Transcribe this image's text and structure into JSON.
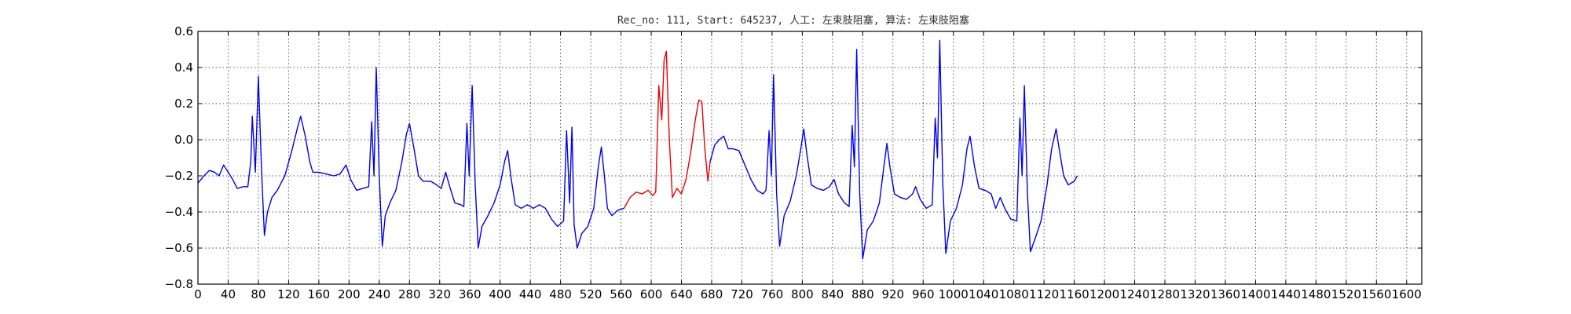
{
  "chart_data": {
    "type": "line",
    "title": "Rec_no: 111, Start: 645237, 人工: 左束肢阻塞, 算法: 左束肢阻塞",
    "xlabel": "",
    "ylabel": "",
    "xlim": [
      0,
      1620
    ],
    "ylim": [
      -0.8,
      0.6
    ],
    "grid": true,
    "x_ticks": [
      0,
      40,
      80,
      120,
      160,
      200,
      240,
      280,
      320,
      360,
      400,
      440,
      480,
      520,
      560,
      600,
      640,
      680,
      720,
      760,
      800,
      840,
      880,
      920,
      960,
      1000,
      1040,
      1080,
      1120,
      1160,
      1200,
      1240,
      1280,
      1320,
      1360,
      1400,
      1440,
      1480,
      1520,
      1560,
      1600
    ],
    "x_tick_labels": [
      "0",
      "40",
      "80",
      "120",
      "160",
      "200",
      "240",
      "280",
      "320",
      "360",
      "400",
      "440",
      "480",
      "520",
      "560",
      "600",
      "640",
      "680",
      "720",
      "760",
      "800",
      "840",
      "880",
      "920",
      "960",
      "1000",
      "1040",
      "1080",
      "1120",
      "1160",
      "1200",
      "1240",
      "1280",
      "1320",
      "1360",
      "1400",
      "1440",
      "1480",
      "1520",
      "1560",
      "1600"
    ],
    "y_ticks": [
      -0.8,
      -0.6,
      -0.4,
      -0.2,
      0.0,
      0.2,
      0.4,
      0.6
    ],
    "y_tick_labels": [
      "−0.8",
      "−0.6",
      "−0.4",
      "−0.2",
      "0.0",
      "0.2",
      "0.4",
      "0.6"
    ],
    "colors": {
      "normal": "#0000ee",
      "highlight": "#ee0000"
    },
    "series": [
      {
        "color": "#0000ee",
        "points": [
          [
            0,
            -0.24
          ],
          [
            8,
            -0.2
          ],
          [
            15,
            -0.17
          ],
          [
            22,
            -0.18
          ],
          [
            28,
            -0.2
          ],
          [
            34,
            -0.14
          ],
          [
            40,
            -0.18
          ],
          [
            46,
            -0.22
          ],
          [
            52,
            -0.27
          ],
          [
            60,
            -0.26
          ],
          [
            66,
            -0.26
          ],
          [
            70,
            -0.12
          ],
          [
            72,
            0.13
          ],
          [
            76,
            -0.18
          ],
          [
            80,
            0.35
          ],
          [
            84,
            -0.15
          ],
          [
            88,
            -0.53
          ],
          [
            92,
            -0.4
          ],
          [
            98,
            -0.32
          ],
          [
            105,
            -0.28
          ],
          [
            115,
            -0.2
          ],
          [
            125,
            -0.05
          ],
          [
            132,
            0.07
          ],
          [
            136,
            0.13
          ],
          [
            142,
            0.02
          ],
          [
            148,
            -0.12
          ],
          [
            152,
            -0.18
          ],
          [
            160,
            -0.18
          ],
          [
            170,
            -0.19
          ],
          [
            180,
            -0.2
          ],
          [
            188,
            -0.19
          ],
          [
            196,
            -0.14
          ],
          [
            202,
            -0.22
          ],
          [
            210,
            -0.28
          ],
          [
            218,
            -0.27
          ],
          [
            226,
            -0.26
          ],
          [
            230,
            0.1
          ],
          [
            233,
            -0.2
          ],
          [
            236,
            0.4
          ],
          [
            240,
            -0.2
          ],
          [
            244,
            -0.59
          ],
          [
            248,
            -0.42
          ],
          [
            254,
            -0.35
          ],
          [
            262,
            -0.28
          ],
          [
            270,
            -0.12
          ],
          [
            276,
            0.03
          ],
          [
            280,
            0.09
          ],
          [
            286,
            -0.05
          ],
          [
            292,
            -0.2
          ],
          [
            298,
            -0.23
          ],
          [
            308,
            -0.23
          ],
          [
            316,
            -0.25
          ],
          [
            322,
            -0.27
          ],
          [
            328,
            -0.18
          ],
          [
            334,
            -0.27
          ],
          [
            340,
            -0.35
          ],
          [
            348,
            -0.36
          ],
          [
            352,
            -0.37
          ],
          [
            356,
            0.09
          ],
          [
            359,
            -0.2
          ],
          [
            363,
            0.3
          ],
          [
            367,
            -0.25
          ],
          [
            371,
            -0.6
          ],
          [
            376,
            -0.48
          ],
          [
            384,
            -0.42
          ],
          [
            392,
            -0.35
          ],
          [
            400,
            -0.25
          ],
          [
            406,
            -0.12
          ],
          [
            410,
            -0.06
          ],
          [
            414,
            -0.2
          ],
          [
            420,
            -0.36
          ],
          [
            428,
            -0.38
          ],
          [
            436,
            -0.36
          ],
          [
            444,
            -0.38
          ],
          [
            452,
            -0.36
          ],
          [
            460,
            -0.38
          ],
          [
            468,
            -0.44
          ],
          [
            476,
            -0.48
          ],
          [
            484,
            -0.45
          ],
          [
            488,
            0.05
          ],
          [
            492,
            -0.35
          ],
          [
            495,
            0.07
          ],
          [
            498,
            -0.47
          ],
          [
            502,
            -0.6
          ],
          [
            508,
            -0.52
          ],
          [
            516,
            -0.48
          ],
          [
            524,
            -0.38
          ],
          [
            530,
            -0.15
          ],
          [
            534,
            -0.04
          ],
          [
            538,
            -0.2
          ],
          [
            542,
            -0.38
          ],
          [
            548,
            -0.42
          ],
          [
            556,
            -0.39
          ],
          [
            564,
            -0.38
          ]
        ]
      },
      {
        "color": "#ee0000",
        "points": [
          [
            564,
            -0.38
          ],
          [
            572,
            -0.32
          ],
          [
            580,
            -0.29
          ],
          [
            588,
            -0.3
          ],
          [
            596,
            -0.28
          ],
          [
            602,
            -0.31
          ],
          [
            606,
            -0.29
          ],
          [
            610,
            0.3
          ],
          [
            614,
            0.11
          ],
          [
            617,
            0.44
          ],
          [
            620,
            0.49
          ],
          [
            624,
            0.0
          ],
          [
            628,
            -0.32
          ],
          [
            634,
            -0.27
          ],
          [
            640,
            -0.3
          ],
          [
            646,
            -0.22
          ],
          [
            652,
            -0.08
          ],
          [
            658,
            0.1
          ],
          [
            663,
            0.22
          ],
          [
            667,
            0.21
          ],
          [
            671,
            -0.05
          ],
          [
            675,
            -0.23
          ],
          [
            678,
            -0.12
          ]
        ]
      },
      {
        "color": "#0000ee",
        "points": [
          [
            678,
            -0.12
          ],
          [
            684,
            -0.03
          ],
          [
            690,
            0.0
          ],
          [
            696,
            0.02
          ],
          [
            702,
            -0.05
          ],
          [
            708,
            -0.05
          ],
          [
            716,
            -0.06
          ],
          [
            724,
            -0.14
          ],
          [
            732,
            -0.22
          ],
          [
            740,
            -0.28
          ],
          [
            748,
            -0.3
          ],
          [
            752,
            -0.28
          ],
          [
            756,
            0.05
          ],
          [
            759,
            -0.2
          ],
          [
            762,
            0.36
          ],
          [
            766,
            -0.3
          ],
          [
            770,
            -0.59
          ],
          [
            776,
            -0.42
          ],
          [
            784,
            -0.34
          ],
          [
            792,
            -0.2
          ],
          [
            798,
            -0.05
          ],
          [
            802,
            0.06
          ],
          [
            806,
            -0.08
          ],
          [
            812,
            -0.25
          ],
          [
            820,
            -0.27
          ],
          [
            828,
            -0.28
          ],
          [
            836,
            -0.26
          ],
          [
            842,
            -0.22
          ],
          [
            848,
            -0.3
          ],
          [
            856,
            -0.35
          ],
          [
            862,
            -0.37
          ],
          [
            866,
            0.08
          ],
          [
            869,
            -0.15
          ],
          [
            872,
            0.5
          ],
          [
            876,
            -0.3
          ],
          [
            880,
            -0.66
          ],
          [
            886,
            -0.5
          ],
          [
            894,
            -0.45
          ],
          [
            902,
            -0.35
          ],
          [
            908,
            -0.15
          ],
          [
            912,
            -0.02
          ],
          [
            916,
            -0.15
          ],
          [
            922,
            -0.3
          ],
          [
            930,
            -0.32
          ],
          [
            938,
            -0.33
          ],
          [
            946,
            -0.3
          ],
          [
            950,
            -0.26
          ],
          [
            956,
            -0.33
          ],
          [
            964,
            -0.38
          ],
          [
            972,
            -0.36
          ],
          [
            976,
            0.12
          ],
          [
            979,
            -0.1
          ],
          [
            982,
            0.55
          ],
          [
            986,
            -0.25
          ],
          [
            990,
            -0.63
          ],
          [
            996,
            -0.45
          ],
          [
            1004,
            -0.38
          ],
          [
            1012,
            -0.25
          ],
          [
            1018,
            -0.05
          ],
          [
            1022,
            0.02
          ],
          [
            1028,
            -0.15
          ],
          [
            1034,
            -0.27
          ],
          [
            1042,
            -0.28
          ],
          [
            1050,
            -0.3
          ],
          [
            1056,
            -0.38
          ],
          [
            1062,
            -0.32
          ],
          [
            1068,
            -0.38
          ],
          [
            1076,
            -0.44
          ],
          [
            1084,
            -0.45
          ],
          [
            1088,
            0.12
          ],
          [
            1091,
            -0.2
          ],
          [
            1094,
            0.3
          ],
          [
            1098,
            -0.3
          ],
          [
            1102,
            -0.62
          ],
          [
            1108,
            -0.55
          ],
          [
            1116,
            -0.45
          ],
          [
            1124,
            -0.25
          ],
          [
            1130,
            -0.05
          ],
          [
            1136,
            0.06
          ],
          [
            1140,
            -0.05
          ],
          [
            1146,
            -0.2
          ],
          [
            1152,
            -0.25
          ],
          [
            1160,
            -0.23
          ],
          [
            1164,
            -0.2
          ]
        ]
      }
    ]
  }
}
